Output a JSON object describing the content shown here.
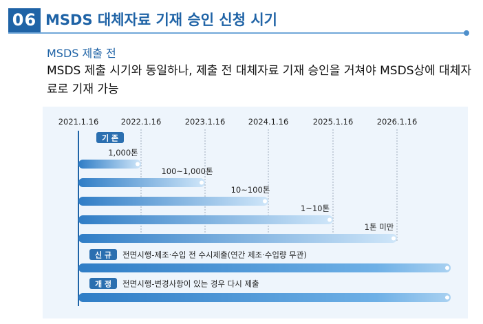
{
  "header": {
    "number": "06",
    "title": "MSDS 대체자료 기재 승인 신청 시기"
  },
  "subheading": "MSDS 제출 전",
  "description": "MSDS 제출 시기와 동일하나, 제출 전 대체자료 기재 승인을 거쳐야  MSDS상에 대체자료로 기재 가능",
  "timeline": {
    "dates": [
      "2021.1.16",
      "2022.1.16",
      "2023.1.16",
      "2024.1.16",
      "2025.1.16",
      "2026.1.16"
    ]
  },
  "groups": {
    "existing": {
      "badge": "기 존",
      "bars": [
        {
          "label": "1,000톤",
          "end_year_index": 1
        },
        {
          "label": "100~1,000톤",
          "end_year_index": 2
        },
        {
          "label": "10~100톤",
          "end_year_index": 3
        },
        {
          "label": "1~10톤",
          "end_year_index": 4
        },
        {
          "label": "1톤 미만",
          "end_year_index": 5
        }
      ]
    },
    "new": {
      "badge": "신 규",
      "text": "전면시행-제조·수입 전 수시제출(연간 제조·수입량 무관)"
    },
    "revision": {
      "badge": "개 정",
      "text": "전면시행-변경사항이 있는 경우 다시 제출"
    }
  },
  "colors": {
    "brand": "#1f63a6",
    "badge": "#2b6fb0",
    "bar_dark": "#2f7dc6",
    "bar_light": "#c8e2f8",
    "panel": "#eef5fc"
  }
}
